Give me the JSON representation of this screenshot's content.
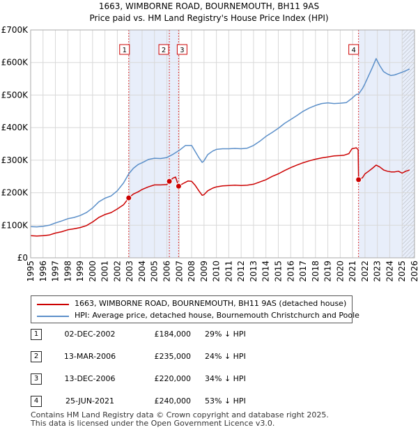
{
  "chart_data": {
    "type": "line",
    "title": "1663, WIMBORNE ROAD, BOURNEMOUTH, BH11 9AS",
    "subtitle": "Price paid vs. HM Land Registry's House Price Index (HPI)",
    "xlabel": "",
    "ylabel": "",
    "xlim": [
      1995,
      2026
    ],
    "ylim": [
      0,
      700000
    ],
    "x_ticks": [
      "1995",
      "1996",
      "1997",
      "1998",
      "1999",
      "2000",
      "2001",
      "2002",
      "2003",
      "2004",
      "2005",
      "2006",
      "2007",
      "2008",
      "2009",
      "2010",
      "2011",
      "2012",
      "2013",
      "2014",
      "2015",
      "2016",
      "2017",
      "2018",
      "2019",
      "2020",
      "2021",
      "2022",
      "2023",
      "2024",
      "2025",
      "2026"
    ],
    "y_ticks": [
      {
        "value": 0,
        "label": "£0"
      },
      {
        "value": 100000,
        "label": "£100K"
      },
      {
        "value": 200000,
        "label": "£200K"
      },
      {
        "value": 300000,
        "label": "£300K"
      },
      {
        "value": 400000,
        "label": "£400K"
      },
      {
        "value": 500000,
        "label": "£500K"
      },
      {
        "value": 600000,
        "label": "£600K"
      },
      {
        "value": 700000,
        "label": "£700K"
      }
    ],
    "grid": true,
    "shaded_ranges": [
      [
        2002.92,
        2006.95
      ],
      [
        2021.48,
        2026.0
      ]
    ],
    "hatched_from": 2025.0,
    "series": [
      {
        "name": "1663, WIMBORNE ROAD, BOURNEMOUTH, BH11 9AS (detached house)",
        "color": "#cc0000",
        "x": [
          1995.0,
          1995.5,
          1996.0,
          1996.5,
          1997.0,
          1997.5,
          1998.0,
          1998.5,
          1999.0,
          1999.5,
          2000.0,
          2000.5,
          2001.0,
          2001.5,
          2002.0,
          2002.5,
          2002.92,
          2003.3,
          2003.7,
          2004.0,
          2004.5,
          2005.0,
          2005.5,
          2006.0,
          2006.2,
          2006.5,
          2006.7,
          2006.95,
          2007.3,
          2007.7,
          2008.0,
          2008.3,
          2008.6,
          2008.85,
          2009.0,
          2009.3,
          2009.7,
          2010.0,
          2010.5,
          2011.0,
          2011.5,
          2012.0,
          2012.5,
          2013.0,
          2013.5,
          2014.0,
          2014.5,
          2015.0,
          2015.5,
          2016.0,
          2016.5,
          2017.0,
          2017.5,
          2018.0,
          2018.5,
          2019.0,
          2019.5,
          2020.0,
          2020.3,
          2020.7,
          2020.95,
          2021.3,
          2021.45,
          2021.48,
          2021.8,
          2022.0,
          2022.3,
          2022.6,
          2022.9,
          2023.2,
          2023.5,
          2023.8,
          2024.1,
          2024.4,
          2024.7,
          2025.0,
          2025.3,
          2025.6
        ],
        "y": [
          68000,
          67000,
          68000,
          70000,
          76000,
          80000,
          86000,
          89000,
          93000,
          99000,
          110000,
          124000,
          133000,
          139000,
          150000,
          163000,
          184000,
          196000,
          203000,
          210000,
          218000,
          224000,
          224000,
          225000,
          235000,
          245000,
          248000,
          220000,
          228000,
          236000,
          235000,
          222000,
          205000,
          192000,
          194000,
          206000,
          214000,
          218000,
          221000,
          222000,
          223000,
          222000,
          223000,
          226000,
          233000,
          240000,
          250000,
          258000,
          268000,
          277000,
          285000,
          292000,
          298000,
          303000,
          307000,
          310000,
          313000,
          314000,
          315000,
          320000,
          335000,
          338000,
          332000,
          240000,
          246000,
          258000,
          266000,
          275000,
          285000,
          279000,
          270000,
          266000,
          264000,
          264000,
          266000,
          260000,
          266000,
          270000
        ]
      },
      {
        "name": "HPI: Average price, detached house, Bournemouth Christchurch and Poole",
        "color": "#5b8fc9",
        "x": [
          1995.0,
          1995.5,
          1996.0,
          1996.5,
          1997.0,
          1997.5,
          1998.0,
          1998.5,
          1999.0,
          1999.5,
          2000.0,
          2000.5,
          2001.0,
          2001.5,
          2002.0,
          2002.5,
          2002.92,
          2003.3,
          2003.7,
          2004.0,
          2004.5,
          2005.0,
          2005.5,
          2006.0,
          2006.5,
          2007.0,
          2007.5,
          2008.0,
          2008.3,
          2008.6,
          2008.85,
          2009.0,
          2009.3,
          2009.7,
          2010.0,
          2010.5,
          2011.0,
          2011.5,
          2012.0,
          2012.5,
          2013.0,
          2013.5,
          2014.0,
          2014.5,
          2015.0,
          2015.5,
          2016.0,
          2016.5,
          2017.0,
          2017.5,
          2018.0,
          2018.5,
          2019.0,
          2019.5,
          2020.0,
          2020.5,
          2020.95,
          2021.3,
          2021.48,
          2021.8,
          2022.0,
          2022.3,
          2022.6,
          2022.9,
          2023.2,
          2023.5,
          2023.8,
          2024.1,
          2024.4,
          2024.7,
          2025.0,
          2025.3,
          2025.6
        ],
        "y": [
          96000,
          95000,
          97000,
          100000,
          107000,
          113000,
          120000,
          124000,
          130000,
          139000,
          153000,
          172000,
          183000,
          190000,
          206000,
          230000,
          258000,
          275000,
          287000,
          292000,
          302000,
          306000,
          305000,
          308000,
          318000,
          330000,
          345000,
          345000,
          326000,
          307000,
          293000,
          298000,
          317000,
          328000,
          333000,
          335000,
          335000,
          336000,
          335000,
          337000,
          345000,
          358000,
          373000,
          385000,
          398000,
          413000,
          425000,
          437000,
          450000,
          460000,
          468000,
          474000,
          476000,
          474000,
          475000,
          477000,
          490000,
          502000,
          503000,
          520000,
          535000,
          560000,
          585000,
          612000,
          590000,
          572000,
          565000,
          560000,
          562000,
          566000,
          570000,
          575000,
          580000
        ]
      }
    ],
    "transactions": [
      {
        "label": "1",
        "date": "02-DEC-2002",
        "x": 2002.92,
        "price": 184000,
        "price_label": "£184,000",
        "hpi": "29% ↓ HPI"
      },
      {
        "label": "2",
        "date": "13-MAR-2006",
        "x": 2006.2,
        "price": 235000,
        "price_label": "£235,000",
        "hpi": "24% ↓ HPI"
      },
      {
        "label": "3",
        "date": "13-DEC-2006",
        "x": 2006.95,
        "price": 220000,
        "price_label": "£220,000",
        "hpi": "34% ↓ HPI"
      },
      {
        "label": "4",
        "date": "25-JUN-2021",
        "x": 2021.48,
        "price": 240000,
        "price_label": "£240,000",
        "hpi": "53% ↓ HPI"
      }
    ]
  },
  "legend": [
    {
      "label": "1663, WIMBORNE ROAD, BOURNEMOUTH, BH11 9AS (detached house)",
      "color": "#cc0000"
    },
    {
      "label": "HPI: Average price, detached house, Bournemouth Christchurch and Poole",
      "color": "#5b8fc9"
    }
  ],
  "footer": {
    "line1": "Contains HM Land Registry data © Crown copyright and database right 2025.",
    "line2": "This data is licensed under the Open Government Licence v3.0."
  }
}
